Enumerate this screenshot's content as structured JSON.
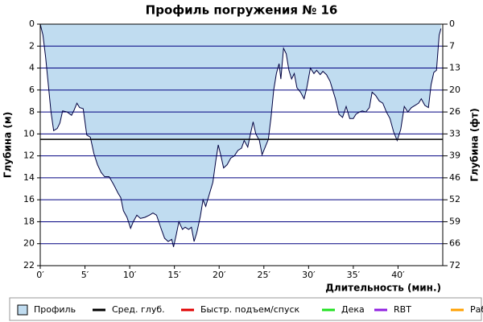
{
  "chart_data": {
    "type": "area",
    "title": "Профиль погружения № 16",
    "x_label": "Длительность (мин.)",
    "y_label": "Глубина (м)",
    "y2_label": "Глубина (фт)",
    "xlim": [
      0,
      45
    ],
    "xticks": [
      {
        "value": 0,
        "label": "0′"
      },
      {
        "value": 5,
        "label": "5′"
      },
      {
        "value": 10,
        "label": "10′"
      },
      {
        "value": 15,
        "label": "15′"
      },
      {
        "value": 20,
        "label": "20′"
      },
      {
        "value": 25,
        "label": "25′"
      },
      {
        "value": 30,
        "label": "30′"
      },
      {
        "value": 35,
        "label": "35′"
      },
      {
        "value": 40,
        "label": "40′"
      }
    ],
    "ylim": [
      0,
      22
    ],
    "yticks": [
      0,
      2,
      4,
      6,
      8,
      10,
      12,
      14,
      16,
      18,
      20,
      22
    ],
    "y2lim": [
      0,
      72.18
    ],
    "y2ticks": [
      {
        "value": 0,
        "label": "0"
      },
      {
        "value": 6.56,
        "label": "7"
      },
      {
        "value": 13.12,
        "label": "13"
      },
      {
        "value": 19.69,
        "label": "20"
      },
      {
        "value": 26.25,
        "label": "26"
      },
      {
        "value": 32.81,
        "label": "33"
      },
      {
        "value": 39.37,
        "label": "39"
      },
      {
        "value": 45.93,
        "label": "46"
      },
      {
        "value": 52.49,
        "label": "52"
      },
      {
        "value": 59.06,
        "label": "59"
      },
      {
        "value": 65.62,
        "label": "66"
      },
      {
        "value": 72.18,
        "label": "72"
      }
    ],
    "y_inverted": true,
    "grid": true,
    "x": [
      0,
      0.3,
      0.6,
      0.9,
      1.2,
      1.5,
      1.9,
      2.2,
      2.5,
      3,
      3.5,
      3.8,
      4.1,
      4.4,
      4.8,
      5.2,
      5.6,
      6,
      6.4,
      6.8,
      7.2,
      7.7,
      8.2,
      8.7,
      9,
      9.3,
      9.7,
      10.1,
      10.4,
      10.8,
      11.2,
      11.7,
      12.2,
      12.6,
      13,
      13.5,
      13.9,
      14.3,
      14.7,
      14.9,
      15.2,
      15.5,
      15.9,
      16.2,
      16.6,
      16.9,
      17.2,
      17.5,
      17.9,
      18.2,
      18.5,
      18.9,
      19.3,
      19.6,
      19.9,
      20.2,
      20.5,
      20.9,
      21.3,
      21.7,
      22.1,
      22.5,
      22.8,
      23.2,
      23.5,
      23.8,
      24.1,
      24.5,
      24.8,
      25.2,
      25.5,
      25.8,
      26.1,
      26.4,
      26.7,
      26.9,
      27.2,
      27.5,
      27.8,
      28.1,
      28.4,
      28.7,
      29.1,
      29.5,
      29.8,
      30.2,
      30.6,
      30.9,
      31.3,
      31.6,
      32,
      32.4,
      32.7,
      33,
      33.4,
      33.8,
      34.2,
      34.6,
      35,
      35.3,
      35.7,
      36,
      36.4,
      36.8,
      37.1,
      37.5,
      37.9,
      38.3,
      38.7,
      39.1,
      39.5,
      39.9,
      40.3,
      40.7,
      41.1,
      41.5,
      41.9,
      42.3,
      42.6,
      43,
      43.4,
      43.7,
      44,
      44.3,
      44.6,
      44.8
    ],
    "series": [
      {
        "name": "Профиль",
        "color": "#c0dcf0",
        "line_color": "#000040",
        "values": [
          0,
          1,
          3,
          5.5,
          8,
          9.7,
          9.5,
          9,
          7.9,
          8,
          8.3,
          7.8,
          7.2,
          7.6,
          7.7,
          10.1,
          10.3,
          11.8,
          12.8,
          13.5,
          13.9,
          13.9,
          14.6,
          15.4,
          15.8,
          17,
          17.6,
          18.6,
          18,
          17.4,
          17.7,
          17.6,
          17.4,
          17.2,
          17.4,
          18.6,
          19.5,
          19.8,
          19.6,
          20.3,
          19.2,
          18,
          18.7,
          18.5,
          18.7,
          18.5,
          19.8,
          19,
          17.5,
          16,
          16.6,
          15.5,
          14.4,
          12.6,
          11,
          12,
          13.1,
          12.8,
          12.2,
          12,
          11.5,
          11.3,
          10.6,
          11.2,
          10,
          8.9,
          10,
          10.6,
          11.9,
          11.1,
          10.5,
          8.5,
          6,
          4.5,
          3.6,
          5,
          2.2,
          2.7,
          4.2,
          5,
          4.5,
          5.8,
          6.2,
          6.8,
          5.8,
          4,
          4.5,
          4.2,
          4.6,
          4.3,
          4.6,
          5.2,
          6,
          6.8,
          8.2,
          8.5,
          7.5,
          8.6,
          8.6,
          8.2,
          8,
          7.9,
          8,
          7.6,
          6.2,
          6.5,
          7,
          7.2,
          8,
          8.6,
          9.8,
          10.6,
          9.6,
          7.5,
          8,
          7.6,
          7.4,
          7.2,
          6.8,
          7.4,
          7.6,
          5.5,
          4.4,
          4.2,
          1,
          0.4
        ]
      },
      {
        "name": "Сред. глуб.",
        "color": "#000000",
        "value": 10.5
      },
      {
        "name": "Быстр. подъем/спуск",
        "color": "#e00000"
      },
      {
        "name": "Дека",
        "color": "#20e020"
      },
      {
        "name": "RBT",
        "color": "#9020e0"
      },
      {
        "name": "Раб.",
        "color": "#ffa000"
      }
    ]
  }
}
